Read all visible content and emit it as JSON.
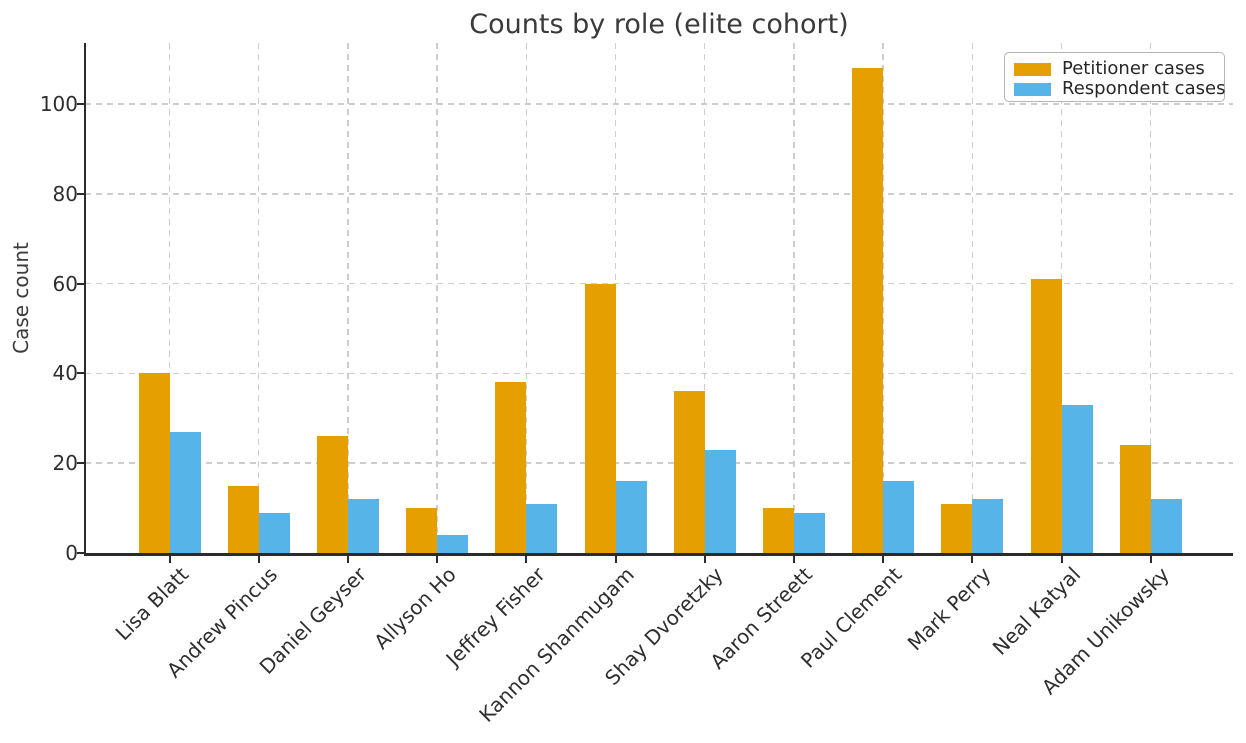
{
  "chart_data": {
    "type": "bar",
    "title": "Counts by role (elite cohort)",
    "xlabel": "",
    "ylabel": "Case count",
    "categories": [
      "Lisa Blatt",
      "Andrew Pincus",
      "Daniel Geyser",
      "Allyson Ho",
      "Jeffrey Fisher",
      "Kannon Shanmugam",
      "Shay Dvoretzky",
      "Aaron Streett",
      "Paul Clement",
      "Mark Perry",
      "Neal Katyal",
      "Adam Unikowsky"
    ],
    "series": [
      {
        "name": "Petitioner cases",
        "color": "#E69F00",
        "values": [
          40,
          15,
          26,
          10,
          38,
          60,
          36,
          10,
          108,
          11,
          61,
          24
        ]
      },
      {
        "name": "Respondent cases",
        "color": "#56B4E9",
        "values": [
          27,
          9,
          12,
          4,
          11,
          16,
          23,
          9,
          16,
          12,
          33,
          12
        ]
      }
    ],
    "yticks": [
      0,
      20,
      40,
      60,
      80,
      100
    ],
    "ylim": [
      0,
      113.6
    ],
    "grid": "dashed, horizontal and vertical, below bars",
    "legend_position": "upper right"
  },
  "colors": {
    "petitioner_bar": "#E69F00",
    "respondent_bar": "#56B4E9",
    "grid": "#cdcdcd",
    "spine": "#2b2b2b",
    "text": "#2e2e2e",
    "background": "#ffffff"
  }
}
